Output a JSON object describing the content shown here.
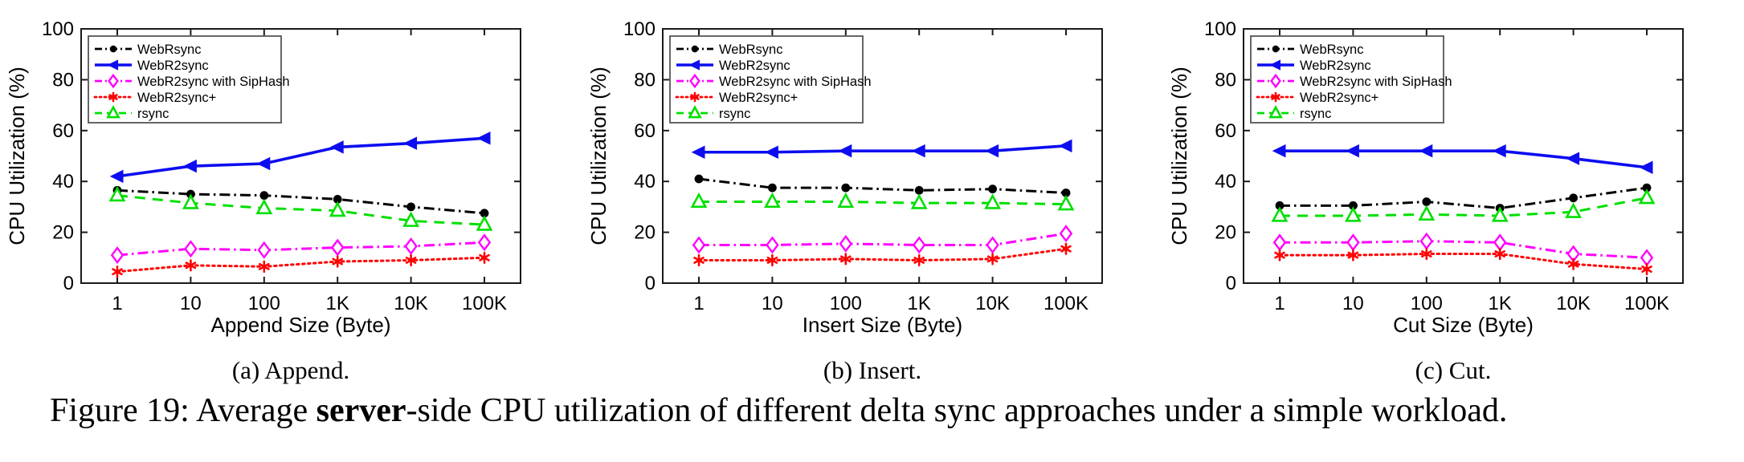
{
  "figure": {
    "caption_part1": "Figure 19: Average ",
    "caption_bold": "server",
    "caption_part2": "-side CPU utilization of different delta sync approaches under a simple workload."
  },
  "chart_data": [
    {
      "type": "line",
      "title": "(a) Append.",
      "xlabel": "Append Size (Byte)",
      "ylabel": "CPU Utilization (%)",
      "categories": [
        "1",
        "10",
        "100",
        "1K",
        "10K",
        "100K"
      ],
      "ylim": [
        0,
        100
      ],
      "yticks": [
        0,
        20,
        40,
        60,
        80,
        100
      ],
      "grid": false,
      "legend_position": "upper-left",
      "series": [
        {
          "name": "WebRsync",
          "color": "#000000",
          "line": "dashdot",
          "marker": "filled-circle",
          "values": [
            36.5,
            35,
            34.5,
            33,
            30,
            27.5
          ]
        },
        {
          "name": "WebR2sync",
          "color": "#0D0DF0",
          "line": "solid",
          "marker": "filled-left-triangle",
          "values": [
            42,
            46,
            47,
            53.5,
            55,
            57
          ]
        },
        {
          "name": "WebR2sync with SipHash",
          "color": "#FF00FF",
          "line": "dashdot",
          "marker": "open-diamond",
          "values": [
            11,
            13.5,
            13,
            14,
            14.5,
            16
          ]
        },
        {
          "name": "WebR2sync+",
          "color": "#FF0000",
          "line": "dotted",
          "marker": "star",
          "values": [
            4.5,
            7,
            6.5,
            8.5,
            9,
            10
          ]
        },
        {
          "name": "rsync",
          "color": "#00DF00",
          "line": "dashed",
          "marker": "open-triangle-up",
          "values": [
            34.5,
            31.5,
            29.5,
            28.5,
            24.5,
            23
          ]
        }
      ]
    },
    {
      "type": "line",
      "title": "(b) Insert.",
      "xlabel": "Insert Size (Byte)",
      "ylabel": "CPU Utilization (%)",
      "categories": [
        "1",
        "10",
        "100",
        "1K",
        "10K",
        "100K"
      ],
      "ylim": [
        0,
        100
      ],
      "yticks": [
        0,
        20,
        40,
        60,
        80,
        100
      ],
      "grid": false,
      "legend_position": "upper-left",
      "series": [
        {
          "name": "WebRsync",
          "color": "#000000",
          "line": "dashdot",
          "marker": "filled-circle",
          "values": [
            41,
            37.5,
            37.5,
            36.5,
            37,
            35.5
          ]
        },
        {
          "name": "WebR2sync",
          "color": "#0D0DF0",
          "line": "solid",
          "marker": "filled-left-triangle",
          "values": [
            51.5,
            51.5,
            52,
            52,
            52,
            54
          ]
        },
        {
          "name": "WebR2sync with SipHash",
          "color": "#FF00FF",
          "line": "dashdot",
          "marker": "open-diamond",
          "values": [
            15,
            15,
            15.5,
            15,
            15,
            19.5
          ]
        },
        {
          "name": "WebR2sync+",
          "color": "#FF0000",
          "line": "dotted",
          "marker": "star",
          "values": [
            9,
            9,
            9.5,
            9,
            9.5,
            13.5
          ]
        },
        {
          "name": "rsync",
          "color": "#00DF00",
          "line": "dashed",
          "marker": "open-triangle-up",
          "values": [
            32,
            32,
            32,
            31.5,
            31.5,
            31
          ]
        }
      ]
    },
    {
      "type": "line",
      "title": "(c) Cut.",
      "xlabel": "Cut Size (Byte)",
      "ylabel": "CPU Utilization (%)",
      "categories": [
        "1",
        "10",
        "100",
        "1K",
        "10K",
        "100K"
      ],
      "ylim": [
        0,
        100
      ],
      "yticks": [
        0,
        20,
        40,
        60,
        80,
        100
      ],
      "grid": false,
      "legend_position": "upper-left",
      "series": [
        {
          "name": "WebRsync",
          "color": "#000000",
          "line": "dashdot",
          "marker": "filled-circle",
          "values": [
            30.5,
            30.5,
            32,
            29.5,
            33.5,
            37.5
          ]
        },
        {
          "name": "WebR2sync",
          "color": "#0D0DF0",
          "line": "solid",
          "marker": "filled-left-triangle",
          "values": [
            52,
            52,
            52,
            52,
            49,
            45.5
          ]
        },
        {
          "name": "WebR2sync with SipHash",
          "color": "#FF00FF",
          "line": "dashdot",
          "marker": "open-diamond",
          "values": [
            16,
            16,
            16.5,
            16,
            11.5,
            10
          ]
        },
        {
          "name": "WebR2sync+",
          "color": "#FF0000",
          "line": "dotted",
          "marker": "star",
          "values": [
            11,
            11,
            11.5,
            11.5,
            7.5,
            5.5
          ]
        },
        {
          "name": "rsync",
          "color": "#00DF00",
          "line": "dashed",
          "marker": "open-triangle-up",
          "values": [
            26.5,
            26.5,
            27,
            26.5,
            28,
            33.5
          ]
        }
      ]
    }
  ]
}
